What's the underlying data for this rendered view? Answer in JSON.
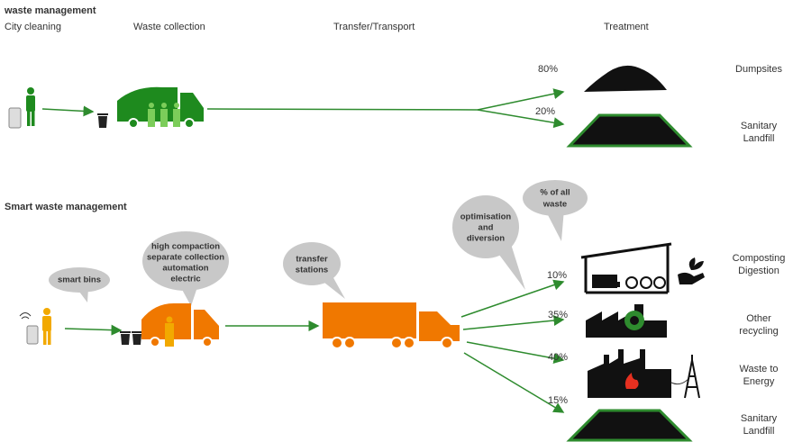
{
  "top": {
    "title": "waste management",
    "stages": [
      "City cleaning",
      "Waste collection",
      "Transfer/Transport",
      "Treatment"
    ],
    "outcomes": [
      {
        "share": "80%",
        "label": [
          "Dumpsites"
        ]
      },
      {
        "share": "20%",
        "label": [
          "Sanitary",
          "Landfill"
        ]
      }
    ]
  },
  "smart": {
    "title": "Smart waste management",
    "bubbles": [
      [
        "smart bins"
      ],
      [
        "high compaction",
        "separate collection",
        "automation",
        "electric"
      ],
      [
        "transfer",
        "stations"
      ],
      [
        "optimisation",
        "and",
        "diversion"
      ],
      [
        "% of all",
        "waste"
      ]
    ],
    "outcomes": [
      {
        "share": "10%",
        "label": [
          "Composting",
          "Digestion"
        ]
      },
      {
        "share": "35%",
        "label": [
          "Other",
          "recycling"
        ]
      },
      {
        "share": "40%",
        "label": [
          "Waste to",
          "Energy"
        ]
      },
      {
        "share": "15%",
        "label": [
          "Sanitary",
          "Landfill"
        ]
      }
    ]
  }
}
